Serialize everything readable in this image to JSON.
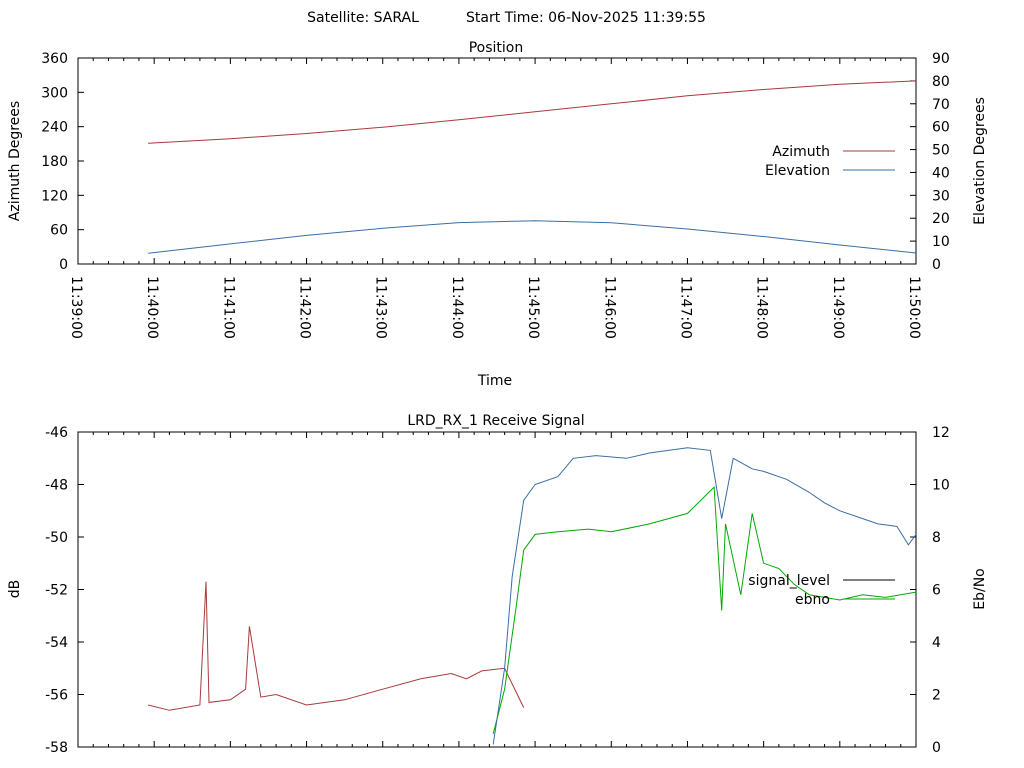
{
  "header": {
    "satellite": "Satellite: SARAL",
    "start_time": "Start Time: 06-Nov-2025 11:39:55"
  },
  "chart_data": [
    {
      "type": "line",
      "title": "Position",
      "xlabel": "Time",
      "ylabel": "Azimuth Degrees",
      "y2label": "Elevation Degrees",
      "x_ticks": [
        "11:39:00",
        "11:40:00",
        "11:41:00",
        "11:42:00",
        "11:43:00",
        "11:44:00",
        "11:45:00",
        "11:46:00",
        "11:47:00",
        "11:48:00",
        "11:49:00",
        "11:50:00"
      ],
      "xlim_minutes": [
        0,
        11
      ],
      "y_ticks": [
        "0",
        "60",
        "120",
        "180",
        "240",
        "300",
        "360"
      ],
      "ylim": [
        0,
        360
      ],
      "y2_ticks": [
        "0",
        "10",
        "20",
        "30",
        "40",
        "50",
        "60",
        "70",
        "80",
        "90"
      ],
      "y2lim": [
        0,
        90
      ],
      "legend_position": "right",
      "series": [
        {
          "name": "Azimuth",
          "axis": "y",
          "color": "#a83a3a",
          "x_minutes": [
            0.92,
            2,
            3,
            4,
            5,
            6,
            7,
            8,
            9,
            10,
            11
          ],
          "values": [
            211,
            219,
            228,
            239,
            252,
            266,
            280,
            294,
            305,
            314,
            320
          ]
        },
        {
          "name": "Elevation",
          "axis": "y2",
          "color": "#3a6ea5",
          "x_minutes": [
            0.92,
            2,
            3,
            4,
            5,
            6,
            7,
            8,
            9,
            10,
            11
          ],
          "values": [
            4.7,
            8.8,
            12.5,
            15.6,
            18.1,
            18.9,
            18.0,
            15.3,
            12.0,
            8.3,
            4.8
          ]
        }
      ]
    },
    {
      "type": "line",
      "title": "LRD_RX_1 Receive Signal",
      "ylabel": "dB",
      "y2label": "Eb/No",
      "xlim_minutes": [
        0,
        11
      ],
      "y_ticks": [
        "-58",
        "-56",
        "-54",
        "-52",
        "-50",
        "-48",
        "-46"
      ],
      "ylim": [
        -58,
        -46
      ],
      "y2_ticks": [
        "0",
        "2",
        "4",
        "6",
        "8",
        "10",
        "12"
      ],
      "y2lim": [
        0,
        12
      ],
      "legend_position": "right",
      "series": [
        {
          "name": "signal_level",
          "axis": "y",
          "color": "#a83a3a",
          "x_minutes": [
            0.92,
            1.2,
            1.6,
            1.68,
            1.72,
            2.0,
            2.2,
            2.25,
            2.4,
            2.6,
            3.0,
            3.5,
            4.0,
            4.5,
            4.9,
            5.1,
            5.3,
            5.6,
            5.85
          ],
          "values": [
            -56.4,
            -56.6,
            -56.4,
            -51.7,
            -56.3,
            -56.2,
            -55.8,
            -53.4,
            -56.1,
            -56.0,
            -56.4,
            -56.2,
            -55.8,
            -55.4,
            -55.2,
            -55.4,
            -55.1,
            -55.0,
            -56.5
          ]
        },
        {
          "name": "ebno",
          "axis": "y2",
          "color": "#00aa00",
          "x_minutes": [
            5.45,
            5.6,
            5.75,
            5.85,
            6.0,
            6.3,
            6.7,
            7.0,
            7.5,
            8.0,
            8.35,
            8.45,
            8.5,
            8.7,
            8.85,
            9.0,
            9.2,
            9.4,
            9.6,
            9.8,
            10.0,
            10.3,
            10.6,
            11.0
          ],
          "values": [
            0.5,
            2.2,
            5.3,
            7.5,
            8.1,
            8.2,
            8.3,
            8.2,
            8.5,
            8.9,
            9.9,
            5.2,
            8.5,
            5.8,
            8.9,
            7.0,
            6.8,
            6.2,
            5.8,
            5.7,
            5.6,
            5.8,
            5.7,
            5.9
          ]
        },
        {
          "name": "",
          "axis": "y2",
          "color": "#3a6ea5",
          "x_minutes": [
            5.45,
            5.6,
            5.7,
            5.85,
            6.0,
            6.3,
            6.5,
            6.8,
            7.2,
            7.5,
            8.0,
            8.3,
            8.45,
            8.6,
            8.85,
            9.0,
            9.3,
            9.6,
            9.8,
            10.0,
            10.3,
            10.5,
            10.75,
            10.9,
            11.0
          ],
          "values": [
            0.1,
            3.0,
            6.5,
            9.4,
            10.0,
            10.3,
            11.0,
            11.1,
            11.0,
            11.2,
            11.4,
            11.3,
            8.7,
            11.0,
            10.6,
            10.5,
            10.2,
            9.7,
            9.3,
            9.0,
            8.7,
            8.5,
            8.4,
            7.7,
            8.1
          ]
        }
      ]
    }
  ]
}
